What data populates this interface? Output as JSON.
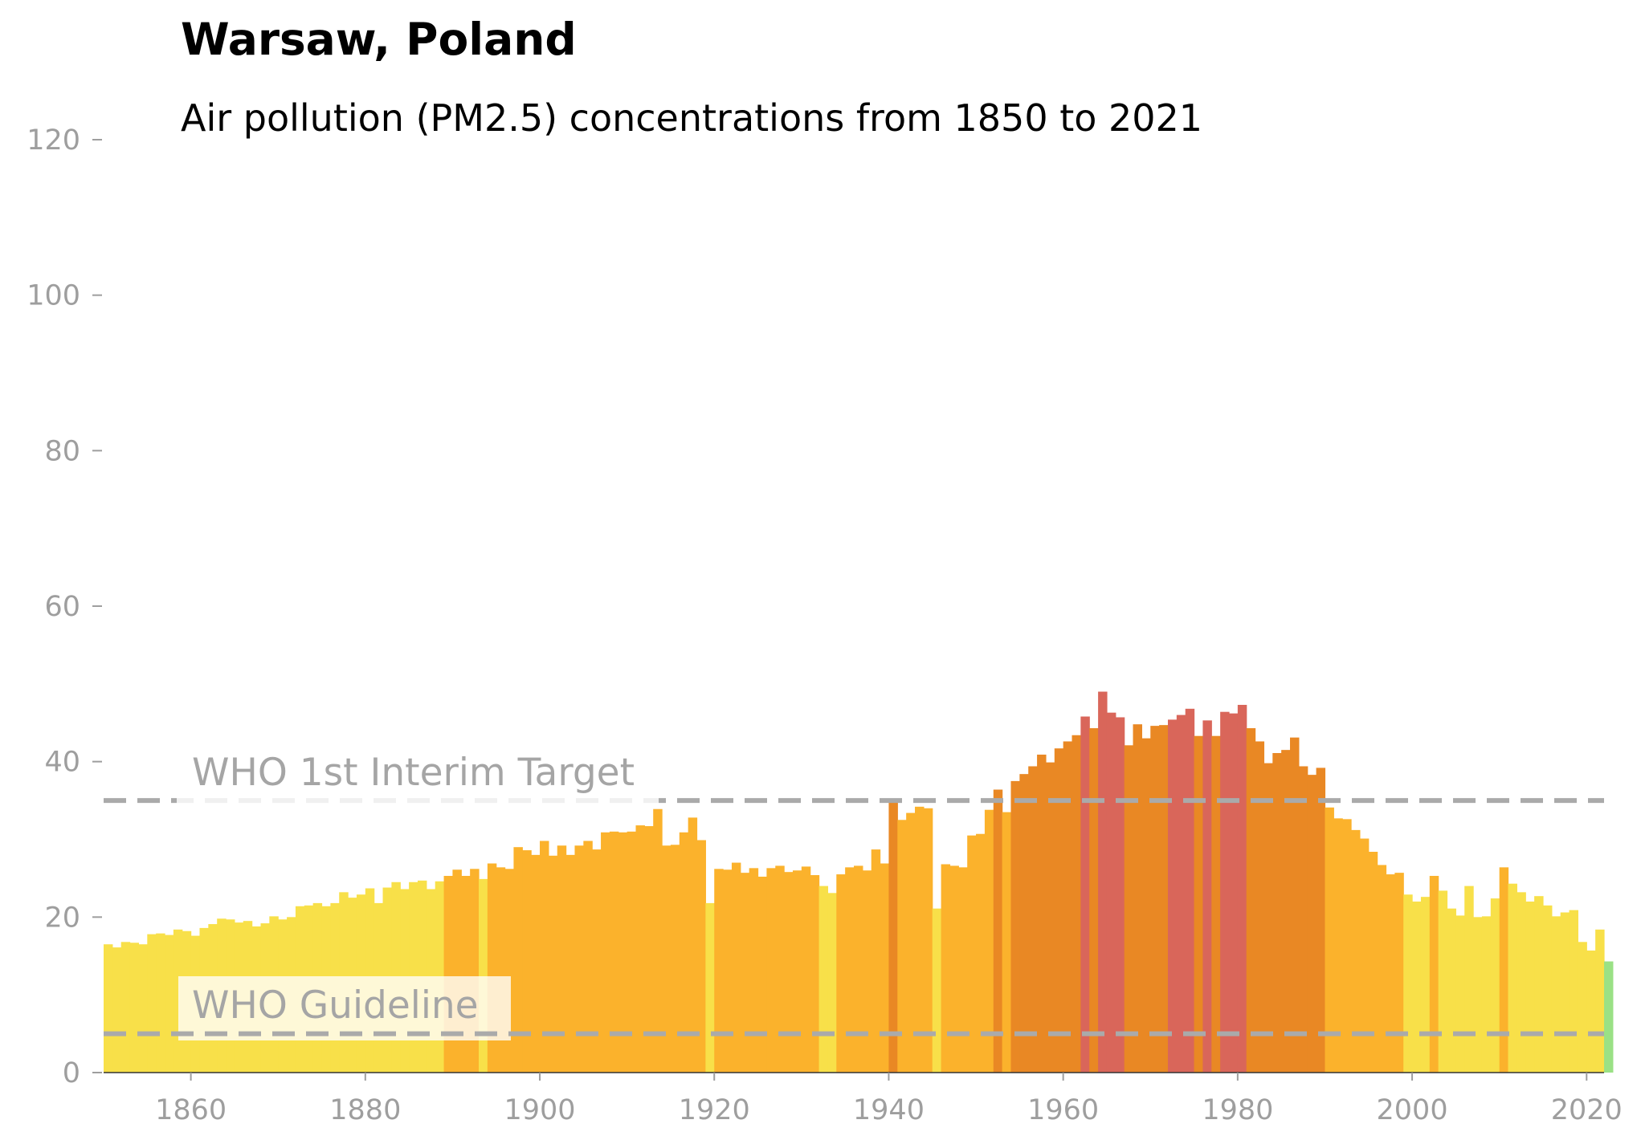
{
  "chart_data": {
    "type": "bar",
    "title": "Warsaw, Poland",
    "subtitle": "Air pollution (PM2.5) concentrations from 1850 to 2021",
    "xlabel": "",
    "ylabel": "",
    "xlim": [
      1850,
      2022
    ],
    "ylim": [
      0,
      120
    ],
    "grid": false,
    "x_ticks": [
      "1860",
      "1880",
      "1900",
      "1920",
      "1940",
      "1960",
      "1980",
      "2000",
      "2020"
    ],
    "y_ticks": [
      "0",
      "20",
      "40",
      "60",
      "80",
      "100",
      "120"
    ],
    "reference_lines": [
      {
        "label": "WHO 1st Interim Target",
        "value": 35
      },
      {
        "label": "WHO Guideline",
        "value": 5
      }
    ],
    "colors": {
      "green": "#9ae185",
      "yellow": "#f8e049",
      "light_orange": "#fbb22c",
      "orange": "#e98824",
      "red": "#d9665a",
      "reference_line": "#aaaaaa",
      "tick": "#9e9e9e"
    },
    "color_thresholds": [
      {
        "max": 15,
        "color": "green"
      },
      {
        "max": 25,
        "color": "yellow"
      },
      {
        "max": 35,
        "color": "light_orange"
      },
      {
        "max": 45,
        "color": "orange"
      },
      {
        "max": 1000,
        "color": "red"
      }
    ],
    "start_year": 1850,
    "values": [
      16.5,
      16.1,
      16.8,
      16.7,
      16.5,
      17.8,
      17.9,
      17.7,
      18.4,
      18.2,
      17.6,
      18.6,
      19.1,
      19.8,
      19.7,
      19.3,
      19.5,
      18.8,
      19.2,
      20.1,
      19.7,
      20.0,
      21.4,
      21.5,
      21.8,
      21.4,
      21.8,
      23.2,
      22.5,
      22.9,
      23.7,
      21.8,
      23.8,
      24.5,
      23.6,
      24.5,
      24.7,
      23.6,
      24.6,
      25.3,
      26.1,
      25.3,
      26.2,
      24.9,
      26.9,
      26.4,
      26.2,
      29.0,
      28.6,
      28.0,
      29.8,
      27.9,
      29.2,
      28.0,
      29.2,
      29.8,
      28.7,
      30.9,
      31.0,
      30.9,
      31.0,
      31.8,
      31.7,
      33.9,
      29.2,
      29.3,
      30.9,
      32.8,
      29.9,
      21.8,
      26.2,
      26.1,
      27.0,
      25.7,
      26.3,
      25.2,
      26.3,
      26.6,
      25.8,
      26.0,
      26.5,
      25.4,
      24.0,
      23.1,
      25.5,
      26.4,
      26.6,
      26.0,
      28.7,
      26.9,
      35.1,
      32.5,
      33.4,
      34.2,
      34.0,
      21.1,
      26.8,
      26.6,
      26.4,
      30.5,
      30.7,
      33.8,
      36.4,
      33.5,
      37.5,
      38.4,
      39.4,
      40.9,
      39.9,
      41.7,
      42.6,
      43.4,
      45.8,
      44.3,
      49.0,
      46.3,
      45.7,
      42.1,
      44.8,
      43.0,
      44.6,
      44.7,
      45.4,
      46.0,
      46.8,
      43.3,
      45.3,
      43.3,
      46.4,
      46.2,
      47.3,
      44.3,
      42.6,
      39.8,
      41.1,
      41.5,
      43.1,
      39.4,
      38.3,
      39.2,
      34.1,
      32.7,
      32.6,
      31.2,
      30.1,
      28.4,
      26.7,
      25.5,
      25.7,
      22.9,
      22.0,
      22.6,
      25.3,
      23.4,
      21.1,
      20.2,
      24.0,
      20.0,
      20.1,
      22.4,
      26.4,
      24.3,
      23.2,
      22.0,
      22.7,
      21.5,
      20.1,
      20.6,
      20.9,
      16.8,
      15.7,
      18.4,
      14.3
    ]
  }
}
